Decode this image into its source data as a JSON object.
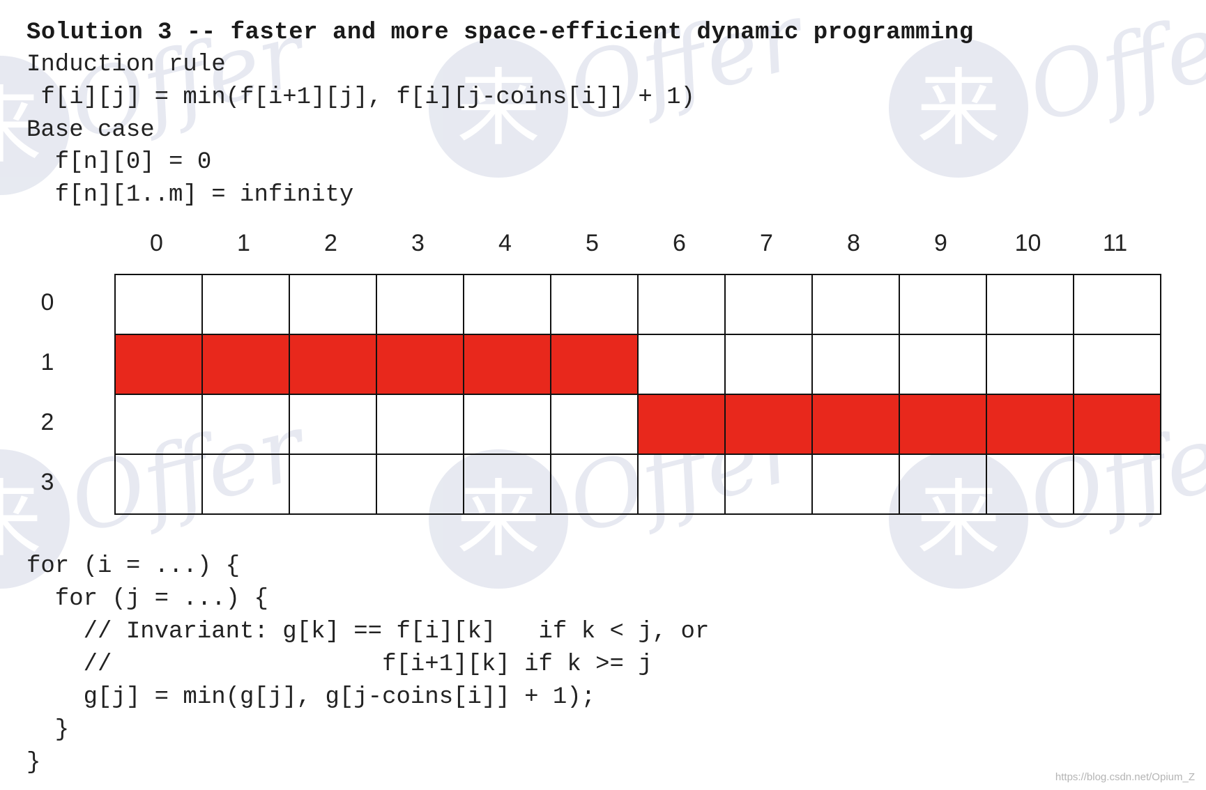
{
  "slide": {
    "title": "Solution 3 -- faster and more space-efficient dynamic programming",
    "induction_heading": "Induction rule",
    "induction_formula": " f[i][j] = min(f[i+1][j], f[i][j-coins[i]] + 1)",
    "base_heading": "Base case",
    "base_line_1": "  f[n][0] = 0",
    "base_line_2": "  f[n][1..m] = infinity"
  },
  "table": {
    "columns": [
      "0",
      "1",
      "2",
      "3",
      "4",
      "5",
      "6",
      "7",
      "8",
      "9",
      "10",
      "11"
    ],
    "rows": [
      "0",
      "1",
      "2",
      "3"
    ],
    "highlighted": [
      {
        "row": 1,
        "cols": [
          0,
          1,
          2,
          3,
          4,
          5
        ]
      },
      {
        "row": 2,
        "cols": [
          6,
          7,
          8,
          9,
          10,
          11
        ]
      }
    ],
    "highlight_color": "#e8281c"
  },
  "code": {
    "lines": [
      "for (i = ...) {",
      "  for (j = ...) {",
      "    // Invariant: g[k] == f[i][k]   if k < j, or",
      "    //                   f[i+1][k] if k >= j",
      "    g[j] = min(g[j], g[j-coins[i]] + 1);",
      "  }",
      "}"
    ]
  },
  "watermark": {
    "text": "Offer",
    "char": "来",
    "color": "#d4d8e6"
  },
  "credit": "https://blog.csdn.net/Opium_Z"
}
